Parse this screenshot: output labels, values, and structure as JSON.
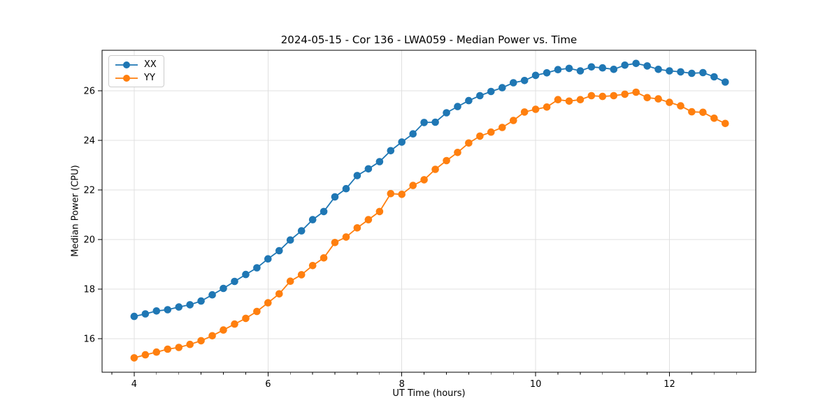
{
  "figure": {
    "title": "2024-05-15 - Cor 136 - LWA059 - Median Power vs. Time",
    "xlabel": "UT Time (hours)",
    "ylabel": "Median Power (CPU)"
  },
  "legend": {
    "items": [
      {
        "label": "XX",
        "color": "#1f77b4"
      },
      {
        "label": "YY",
        "color": "#ff7f0e"
      }
    ]
  },
  "chart_data": {
    "type": "line",
    "title": "2024-05-15 - Cor 136 - LWA059 - Median Power vs. Time",
    "xlabel": "UT Time (hours)",
    "ylabel": "Median Power (CPU)",
    "grid": true,
    "legend_position": "upper left",
    "xlim": [
      3.52,
      13.29
    ],
    "ylim": [
      14.65,
      27.63
    ],
    "xticks": [
      4,
      6,
      8,
      10,
      12
    ],
    "yticks": [
      16,
      18,
      20,
      22,
      24,
      26
    ],
    "x_minor_step": 0.3333,
    "x": [
      4.0,
      4.167,
      4.333,
      4.5,
      4.667,
      4.833,
      5.0,
      5.167,
      5.333,
      5.5,
      5.667,
      5.833,
      6.0,
      6.167,
      6.333,
      6.5,
      6.667,
      6.833,
      7.0,
      7.167,
      7.333,
      7.5,
      7.667,
      7.833,
      8.0,
      8.167,
      8.333,
      8.5,
      8.667,
      8.833,
      9.0,
      9.167,
      9.333,
      9.5,
      9.667,
      9.833,
      10.0,
      10.167,
      10.333,
      10.5,
      10.667,
      10.833,
      11.0,
      11.167,
      11.333,
      11.5,
      11.667,
      11.833,
      12.0,
      12.167,
      12.333,
      12.5,
      12.667,
      12.833
    ],
    "series": [
      {
        "name": "XX",
        "color": "#1f77b4",
        "marker": "circle",
        "values": [
          16.9,
          17.0,
          17.12,
          17.17,
          17.28,
          17.37,
          17.52,
          17.77,
          18.03,
          18.31,
          18.59,
          18.86,
          19.22,
          19.55,
          19.98,
          20.35,
          20.8,
          21.13,
          21.72,
          22.05,
          22.58,
          22.85,
          23.14,
          23.58,
          23.93,
          24.26,
          24.72,
          24.73,
          25.11,
          25.36,
          25.6,
          25.8,
          25.97,
          26.12,
          26.32,
          26.41,
          26.62,
          26.72,
          26.85,
          26.9,
          26.8,
          26.96,
          26.92,
          26.86,
          27.03,
          27.1,
          27.0,
          26.86,
          26.8,
          26.76,
          26.7,
          26.73,
          26.56,
          26.35
        ]
      },
      {
        "name": "YY",
        "color": "#ff7f0e",
        "marker": "circle",
        "values": [
          15.23,
          15.35,
          15.46,
          15.58,
          15.65,
          15.77,
          15.92,
          16.12,
          16.35,
          16.59,
          16.82,
          17.1,
          17.45,
          17.81,
          18.32,
          18.58,
          18.95,
          19.26,
          19.88,
          20.1,
          20.47,
          20.8,
          21.13,
          21.85,
          21.82,
          22.18,
          22.41,
          22.83,
          23.18,
          23.51,
          23.89,
          24.17,
          24.33,
          24.52,
          24.8,
          25.14,
          25.25,
          25.34,
          25.64,
          25.58,
          25.64,
          25.8,
          25.77,
          25.8,
          25.86,
          25.94,
          25.72,
          25.67,
          25.53,
          25.39,
          25.15,
          25.13,
          24.89,
          24.68
        ]
      }
    ]
  }
}
